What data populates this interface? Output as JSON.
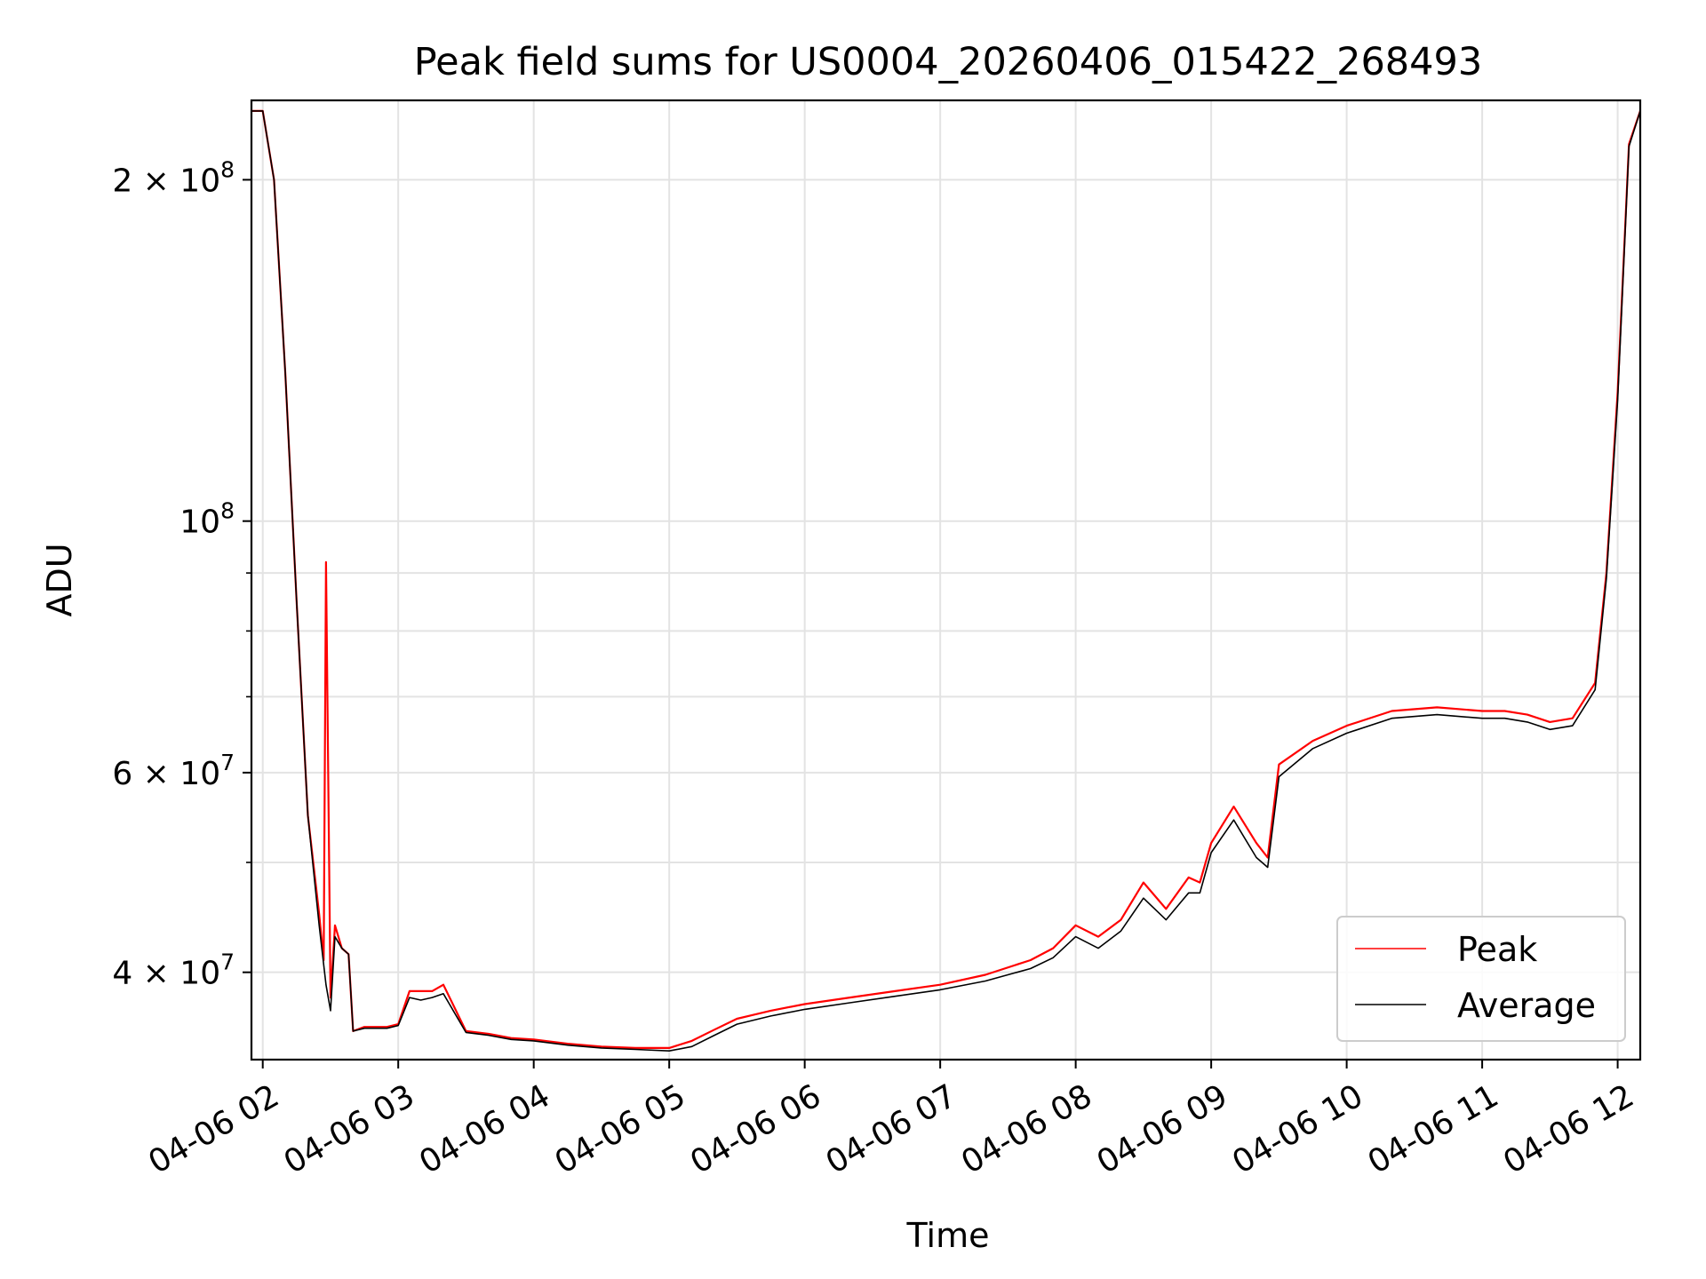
{
  "chart_data": {
    "type": "line",
    "title": "Peak field sums for US0004_20260406_015422_268493",
    "xlabel": "Time",
    "ylabel": "ADU",
    "x_ticks": [
      "04-06 02",
      "04-06 03",
      "04-06 04",
      "04-06 05",
      "04-06 06",
      "04-06 07",
      "04-06 08",
      "04-06 09",
      "04-06 10",
      "04-06 11",
      "04-06 12"
    ],
    "y_ticks": [
      {
        "value": 40000000,
        "base": "4",
        "times": "×",
        "exp_base": "10",
        "exp": "7"
      },
      {
        "value": 60000000,
        "base": "6",
        "times": "×",
        "exp_base": "10",
        "exp": "7"
      },
      {
        "value": 100000000,
        "base": "",
        "times": "",
        "exp_base": "10",
        "exp": "8"
      },
      {
        "value": 200000000,
        "base": "2",
        "times": "×",
        "exp_base": "10",
        "exp": "8"
      }
    ],
    "y_scale": "log",
    "grid": true,
    "legend_position": "lower right",
    "xlim": [
      "2026-04-06 01:55",
      "2026-04-06 12:10"
    ],
    "ylim": [
      33500000,
      235000000
    ],
    "series": [
      {
        "name": "Peak",
        "color": "#ff0000",
        "x": [
          "2026-04-06 01:55",
          "2026-04-06 02:00",
          "2026-04-06 02:05",
          "2026-04-06 02:10",
          "2026-04-06 02:15",
          "2026-04-06 02:20",
          "2026-04-06 02:25",
          "2026-04-06 02:27",
          "2026-04-06 02:28",
          "2026-04-06 02:30",
          "2026-04-06 02:32",
          "2026-04-06 02:35",
          "2026-04-06 02:38",
          "2026-04-06 02:40",
          "2026-04-06 02:45",
          "2026-04-06 02:50",
          "2026-04-06 02:55",
          "2026-04-06 03:00",
          "2026-04-06 03:05",
          "2026-04-06 03:10",
          "2026-04-06 03:15",
          "2026-04-06 03:20",
          "2026-04-06 03:30",
          "2026-04-06 03:40",
          "2026-04-06 03:50",
          "2026-04-06 04:00",
          "2026-04-06 04:15",
          "2026-04-06 04:30",
          "2026-04-06 04:45",
          "2026-04-06 05:00",
          "2026-04-06 05:10",
          "2026-04-06 05:20",
          "2026-04-06 05:30",
          "2026-04-06 05:45",
          "2026-04-06 06:00",
          "2026-04-06 06:20",
          "2026-04-06 06:40",
          "2026-04-06 07:00",
          "2026-04-06 07:20",
          "2026-04-06 07:40",
          "2026-04-06 07:50",
          "2026-04-06 08:00",
          "2026-04-06 08:10",
          "2026-04-06 08:20",
          "2026-04-06 08:30",
          "2026-04-06 08:40",
          "2026-04-06 08:50",
          "2026-04-06 08:55",
          "2026-04-06 09:00",
          "2026-04-06 09:10",
          "2026-04-06 09:20",
          "2026-04-06 09:25",
          "2026-04-06 09:30",
          "2026-04-06 09:45",
          "2026-04-06 10:00",
          "2026-04-06 10:20",
          "2026-04-06 10:40",
          "2026-04-06 11:00",
          "2026-04-06 11:10",
          "2026-04-06 11:20",
          "2026-04-06 11:30",
          "2026-04-06 11:40",
          "2026-04-06 11:50",
          "2026-04-06 11:55",
          "2026-04-06 12:00",
          "2026-04-06 12:05",
          "2026-04-06 12:10"
        ],
        "y": [
          230000000,
          230000000,
          200000000,
          135000000,
          85000000,
          55000000,
          45000000,
          41000000,
          92000000,
          38000000,
          44000000,
          42000000,
          41500000,
          35500000,
          35800000,
          35800000,
          35800000,
          36000000,
          38500000,
          38500000,
          38500000,
          39000000,
          35500000,
          35300000,
          35000000,
          34900000,
          34600000,
          34400000,
          34300000,
          34300000,
          34800000,
          35600000,
          36400000,
          37000000,
          37500000,
          38000000,
          38500000,
          39000000,
          39800000,
          41000000,
          42000000,
          44000000,
          43000000,
          44500000,
          48000000,
          45500000,
          48500000,
          48000000,
          52000000,
          56000000,
          52000000,
          50500000,
          61000000,
          64000000,
          66000000,
          68000000,
          68500000,
          68000000,
          68000000,
          67500000,
          66500000,
          67000000,
          72000000,
          90000000,
          130000000,
          215000000,
          230000000
        ]
      },
      {
        "name": "Average",
        "color": "#000000",
        "x": [
          "2026-04-06 01:55",
          "2026-04-06 02:00",
          "2026-04-06 02:05",
          "2026-04-06 02:10",
          "2026-04-06 02:15",
          "2026-04-06 02:20",
          "2026-04-06 02:25",
          "2026-04-06 02:28",
          "2026-04-06 02:30",
          "2026-04-06 02:32",
          "2026-04-06 02:35",
          "2026-04-06 02:38",
          "2026-04-06 02:40",
          "2026-04-06 02:45",
          "2026-04-06 02:50",
          "2026-04-06 02:55",
          "2026-04-06 03:00",
          "2026-04-06 03:05",
          "2026-04-06 03:10",
          "2026-04-06 03:15",
          "2026-04-06 03:20",
          "2026-04-06 03:30",
          "2026-04-06 03:40",
          "2026-04-06 03:50",
          "2026-04-06 04:00",
          "2026-04-06 04:15",
          "2026-04-06 04:30",
          "2026-04-06 04:45",
          "2026-04-06 05:00",
          "2026-04-06 05:10",
          "2026-04-06 05:20",
          "2026-04-06 05:30",
          "2026-04-06 05:45",
          "2026-04-06 06:00",
          "2026-04-06 06:20",
          "2026-04-06 06:40",
          "2026-04-06 07:00",
          "2026-04-06 07:20",
          "2026-04-06 07:40",
          "2026-04-06 07:50",
          "2026-04-06 08:00",
          "2026-04-06 08:10",
          "2026-04-06 08:20",
          "2026-04-06 08:30",
          "2026-04-06 08:40",
          "2026-04-06 08:50",
          "2026-04-06 08:55",
          "2026-04-06 09:00",
          "2026-04-06 09:10",
          "2026-04-06 09:20",
          "2026-04-06 09:25",
          "2026-04-06 09:30",
          "2026-04-06 09:45",
          "2026-04-06 10:00",
          "2026-04-06 10:20",
          "2026-04-06 10:40",
          "2026-04-06 11:00",
          "2026-04-06 11:10",
          "2026-04-06 11:20",
          "2026-04-06 11:30",
          "2026-04-06 11:40",
          "2026-04-06 11:50",
          "2026-04-06 11:55",
          "2026-04-06 12:00",
          "2026-04-06 12:05",
          "2026-04-06 12:10"
        ],
        "y": [
          230000000,
          230000000,
          200000000,
          135000000,
          85000000,
          55000000,
          44000000,
          39000000,
          37000000,
          43000000,
          42000000,
          41500000,
          35500000,
          35700000,
          35700000,
          35700000,
          35900000,
          38000000,
          37800000,
          38000000,
          38300000,
          35400000,
          35200000,
          34900000,
          34800000,
          34500000,
          34300000,
          34200000,
          34100000,
          34400000,
          35200000,
          36000000,
          36600000,
          37100000,
          37600000,
          38100000,
          38600000,
          39300000,
          40300000,
          41200000,
          43000000,
          42000000,
          43500000,
          46500000,
          44500000,
          47000000,
          47000000,
          51000000,
          54500000,
          50500000,
          49500000,
          59500000,
          63000000,
          65000000,
          67000000,
          67500000,
          67000000,
          67000000,
          66500000,
          65500000,
          66000000,
          71000000,
          89000000,
          128000000,
          214000000,
          230000000
        ]
      }
    ]
  }
}
